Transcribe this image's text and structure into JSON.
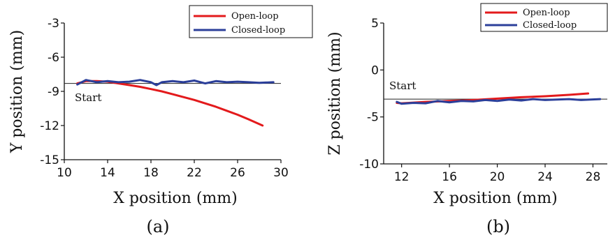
{
  "chart_data": [
    {
      "id": "a",
      "type": "line",
      "caption": "(a)",
      "xlabel": "X position (mm)",
      "ylabel": "Y position (mm)",
      "xlim": [
        10,
        30
      ],
      "ylim": [
        -15,
        -3
      ],
      "xticks": [
        10,
        14,
        18,
        22,
        26,
        30
      ],
      "yticks": [
        -3,
        -6,
        -9,
        -12,
        -15
      ],
      "legend_position": "top-right",
      "reference_line": {
        "y": -8.3,
        "label": "Start"
      },
      "series": [
        {
          "name": "Open-loop",
          "color": "#e31a1c",
          "x": [
            11.2,
            12,
            13,
            14,
            15,
            16,
            17,
            18,
            19,
            20,
            21,
            22,
            23,
            24,
            25,
            26,
            27,
            28.3
          ],
          "y": [
            -8.3,
            -8.1,
            -8.1,
            -8.15,
            -8.3,
            -8.45,
            -8.6,
            -8.8,
            -9.0,
            -9.25,
            -9.5,
            -9.75,
            -10.05,
            -10.35,
            -10.7,
            -11.05,
            -11.45,
            -12.0
          ]
        },
        {
          "name": "Closed-loop",
          "color": "#2b3f9a",
          "x": [
            11.2,
            12,
            13,
            14,
            15,
            16,
            17,
            18,
            18.5,
            19,
            20,
            21,
            22,
            23,
            24,
            25,
            26,
            27,
            28,
            29.3
          ],
          "y": [
            -8.4,
            -8.0,
            -8.2,
            -8.1,
            -8.2,
            -8.15,
            -8.0,
            -8.2,
            -8.45,
            -8.2,
            -8.1,
            -8.2,
            -8.05,
            -8.3,
            -8.1,
            -8.2,
            -8.15,
            -8.2,
            -8.25,
            -8.2
          ]
        }
      ]
    },
    {
      "id": "b",
      "type": "line",
      "caption": "(b)",
      "xlabel": "X position (mm)",
      "ylabel": "Z position (mm)",
      "xlim": [
        10.5,
        29.2
      ],
      "ylim": [
        -10,
        5
      ],
      "xticks": [
        12,
        16,
        20,
        24,
        28
      ],
      "yticks": [
        5,
        0,
        -5,
        -10
      ],
      "legend_position": "top-right",
      "reference_line": {
        "y": -3.1,
        "label": "Start"
      },
      "series": [
        {
          "name": "Open-loop",
          "color": "#e31a1c",
          "x": [
            11.6,
            12,
            14,
            16,
            18,
            20,
            22,
            24,
            26,
            27.6
          ],
          "y": [
            -3.5,
            -3.55,
            -3.4,
            -3.3,
            -3.2,
            -3.05,
            -2.9,
            -2.8,
            -2.65,
            -2.5
          ]
        },
        {
          "name": "Closed-loop",
          "color": "#2b3f9a",
          "x": [
            11.6,
            12,
            13,
            14,
            15,
            16,
            17,
            18,
            19,
            20,
            21,
            22,
            23,
            24,
            25,
            26,
            27,
            28.6
          ],
          "y": [
            -3.4,
            -3.6,
            -3.5,
            -3.55,
            -3.3,
            -3.45,
            -3.3,
            -3.35,
            -3.2,
            -3.3,
            -3.15,
            -3.25,
            -3.1,
            -3.2,
            -3.15,
            -3.1,
            -3.2,
            -3.1
          ]
        }
      ]
    }
  ]
}
